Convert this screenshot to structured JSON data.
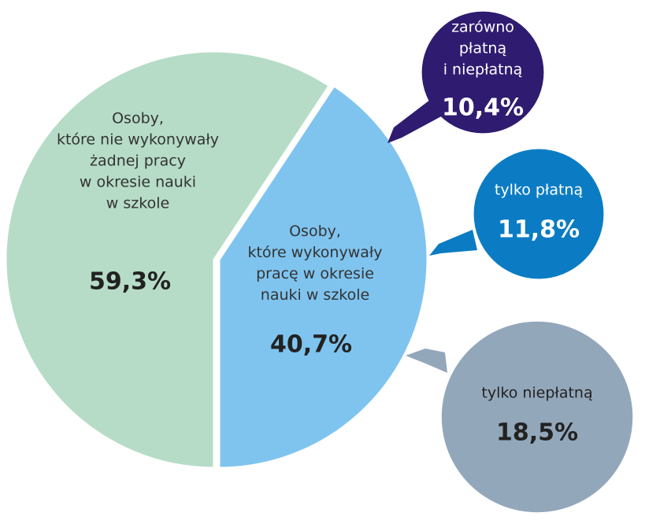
{
  "chart_data": [
    {
      "type": "pie",
      "categories": [
        "Osoby,\nktóre nie wykonywały\nżadnej pracy\nw okresie nauki\nw szkole",
        "Osoby,\nktóre wykonywały\npracę w okresie\nnauki w szkole"
      ],
      "values": [
        59.3,
        40.7
      ],
      "value_labels": [
        "59,3%",
        "40,7%"
      ],
      "colors": [
        "#b6dcc7",
        "#7fc4ef"
      ]
    },
    {
      "type": "bubble",
      "categories": [
        "zarówno\npłatną\ni niepłatną",
        "tylko płatną",
        "tylko niepłatną"
      ],
      "values": [
        10.4,
        11.8,
        18.5
      ],
      "value_labels": [
        "10,4%",
        "11,8%",
        "18,5%"
      ],
      "colors": [
        "#2f1b6f",
        "#0b7cc4",
        "#93a7bb"
      ]
    }
  ]
}
